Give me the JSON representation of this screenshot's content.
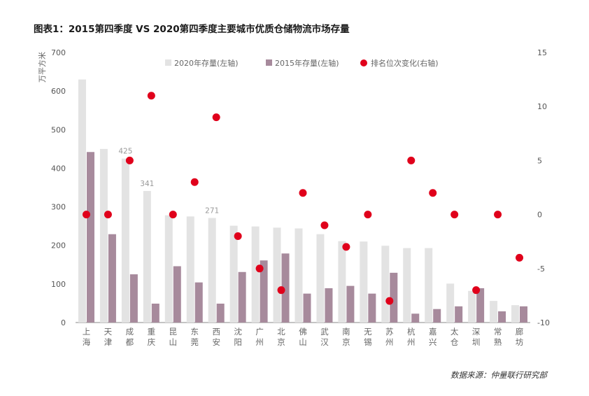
{
  "title": "图表1：2015第四季度 VS 2020第四季度主要城市优质仓储物流市场存量",
  "source": "数据来源：仲量联行研究部",
  "colors": {
    "series2020": "#e3e3e3",
    "series2015": "#a78a9c",
    "rank": "#e0001b",
    "axis": "#888888"
  },
  "chart_data": {
    "type": "bar",
    "ylabel_left": "万平方米",
    "ylim_left": [
      0,
      700
    ],
    "yticks_left": [
      "0",
      "100",
      "200",
      "300",
      "400",
      "500",
      "600",
      "700"
    ],
    "ylim_right": [
      -10,
      15
    ],
    "yticks_right": [
      "-10",
      "-5",
      "0",
      "5",
      "10",
      "15"
    ],
    "categories": [
      [
        "上",
        "海"
      ],
      [
        "天",
        "津"
      ],
      [
        "成",
        "都"
      ],
      [
        "重",
        "庆"
      ],
      [
        "昆",
        "山"
      ],
      [
        "东",
        "莞"
      ],
      [
        "西",
        "安"
      ],
      [
        "沈",
        "阳"
      ],
      [
        "广",
        "州"
      ],
      [
        "北",
        "京"
      ],
      [
        "佛",
        "山"
      ],
      [
        "武",
        "汉"
      ],
      [
        "南",
        "京"
      ],
      [
        "无",
        "锡"
      ],
      [
        "苏",
        "州"
      ],
      [
        "杭",
        "州"
      ],
      [
        "嘉",
        "兴"
      ],
      [
        "太",
        "仓"
      ],
      [
        "深",
        "圳"
      ],
      [
        "常",
        "熟"
      ],
      [
        "廊",
        "坊"
      ]
    ],
    "series": [
      {
        "name": "2020年存量(左轴)",
        "type": "bar",
        "axis": "left",
        "values": [
          630,
          450,
          425,
          341,
          278,
          275,
          271,
          251,
          249,
          246,
          244,
          229,
          211,
          210,
          199,
          193,
          193,
          101,
          82,
          56,
          45
        ]
      },
      {
        "name": "2015年存量(左轴)",
        "type": "bar",
        "axis": "left",
        "values": [
          442,
          229,
          125,
          49,
          146,
          104,
          49,
          131,
          161,
          179,
          75,
          89,
          95,
          75,
          129,
          23,
          35,
          42,
          89,
          29,
          42
        ]
      },
      {
        "name": "排名位次变化(右轴)",
        "type": "scatter",
        "axis": "right",
        "values": [
          0,
          0,
          5,
          11,
          0,
          3,
          9,
          -2,
          -5,
          -7,
          2,
          -1,
          -3,
          0,
          -8,
          5,
          2,
          0,
          -7,
          0,
          -4
        ]
      }
    ],
    "data_labels": [
      {
        "index": 2,
        "text": "425"
      },
      {
        "index": 3,
        "text": "341"
      },
      {
        "index": 6,
        "text": "271"
      }
    ],
    "legend_position": "top-center",
    "grid": false
  }
}
